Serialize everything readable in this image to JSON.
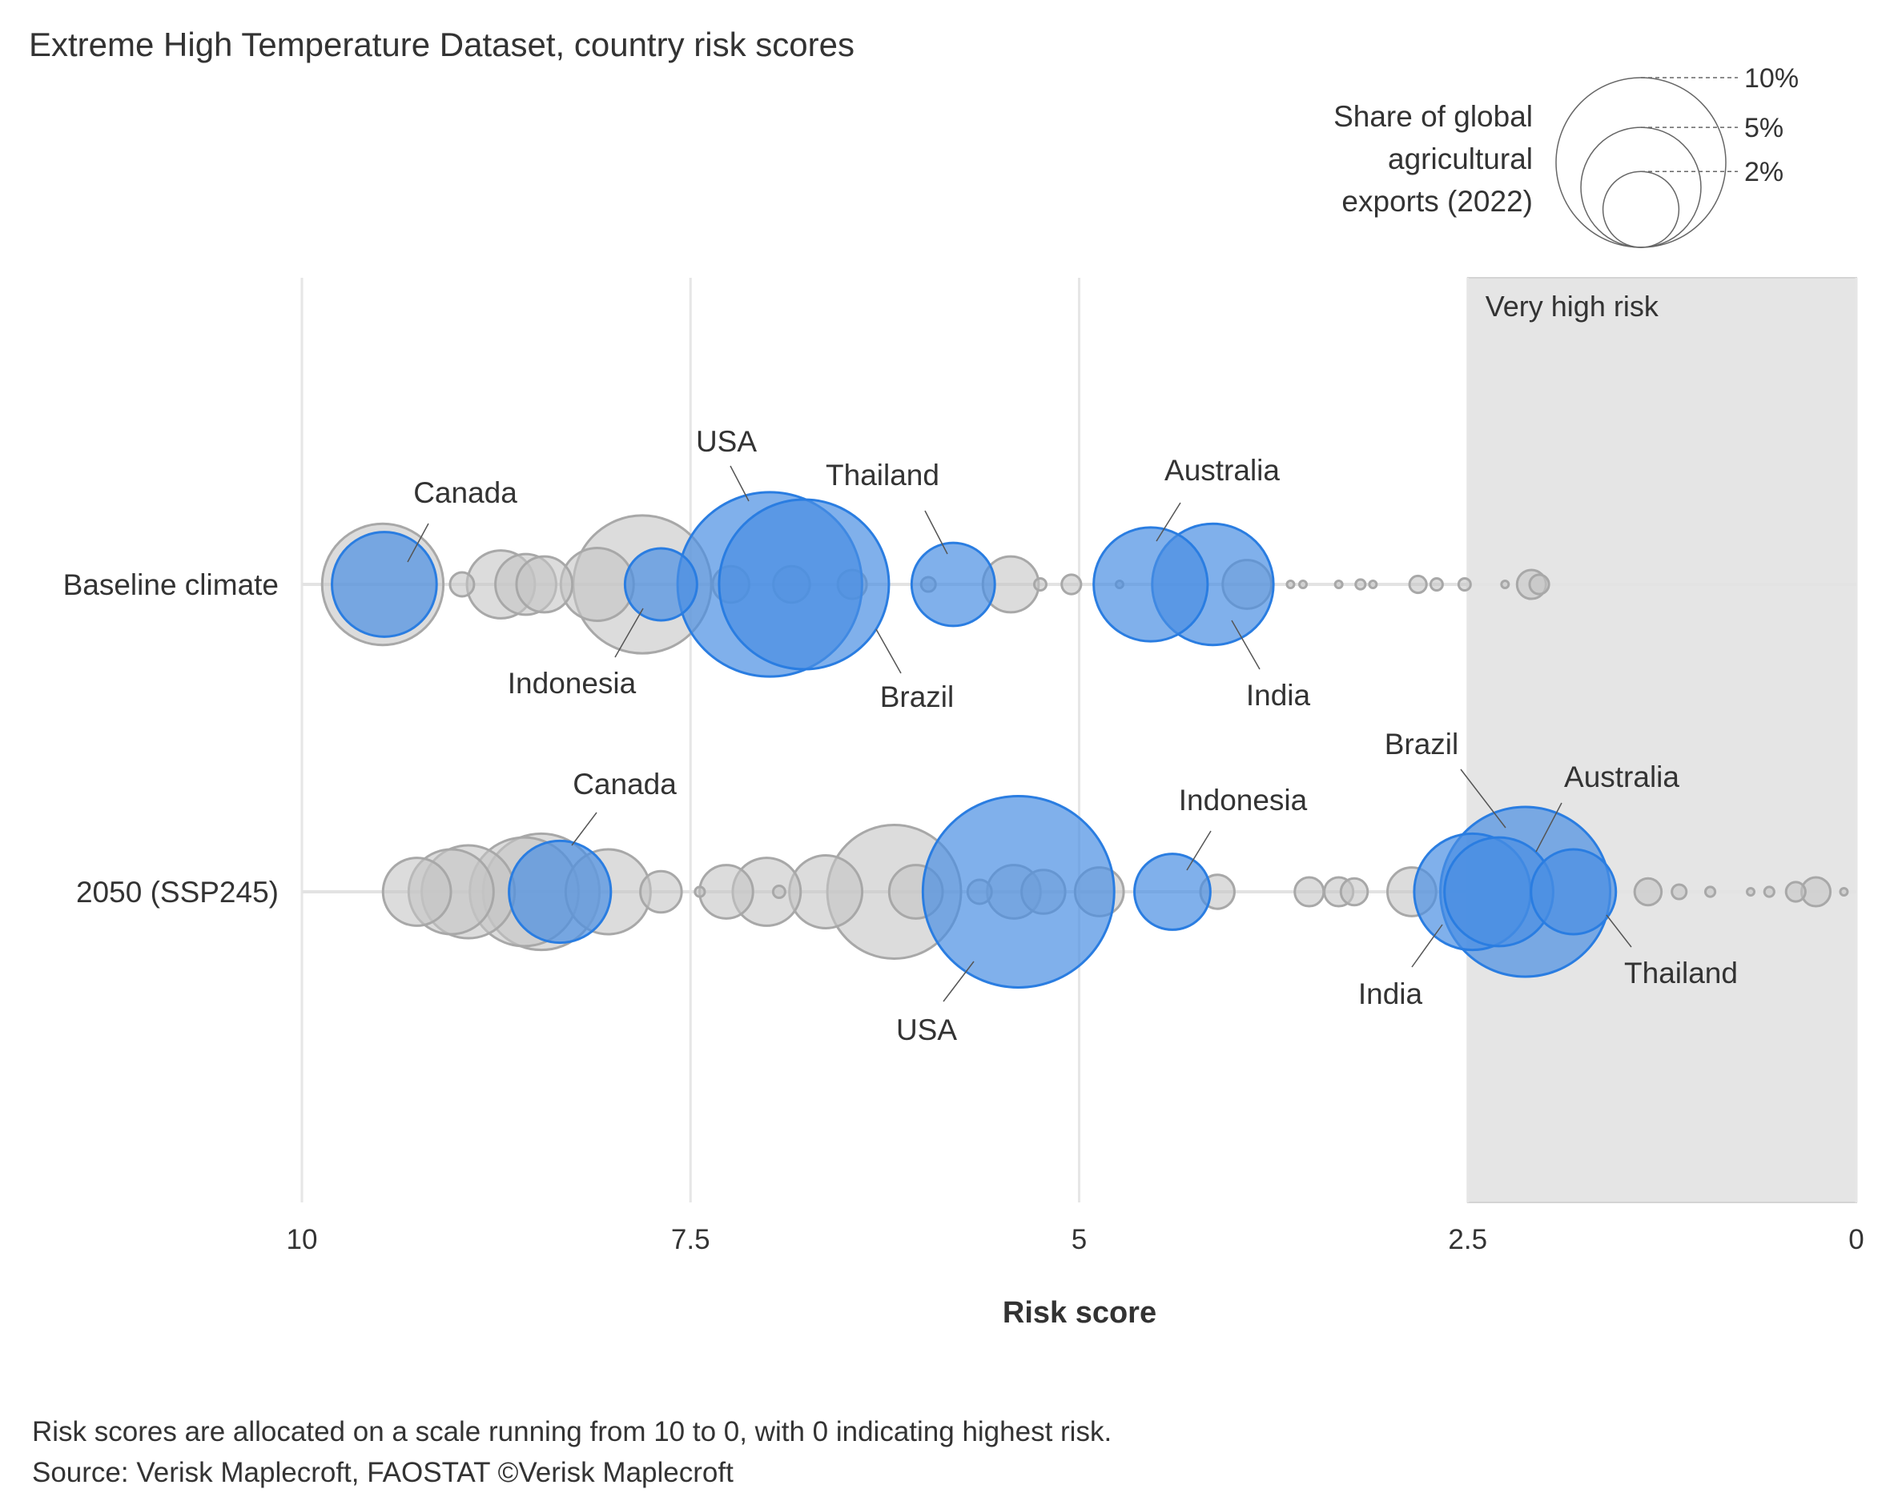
{
  "chart_data": {
    "type": "scatter",
    "title": "Extreme High Temperature Dataset, country risk scores",
    "xlabel": "Risk score",
    "xlim": [
      10,
      0
    ],
    "x_reversed": true,
    "x_ticks": [
      "10",
      "7.5",
      "5",
      "2.5",
      "0"
    ],
    "x_tick_values": [
      10,
      7.5,
      5,
      2.5,
      0
    ],
    "grid": true,
    "rows": [
      "Baseline climate",
      "2050 (SSP245)"
    ],
    "shaded_region": {
      "label": "Very high risk",
      "from": 2.5,
      "to": 0,
      "color": "#e5e5e5"
    },
    "size_legend": {
      "title_lines": [
        "Share of global",
        "agricultural",
        "exports (2022)"
      ],
      "entries": [
        {
          "label": "10%",
          "value": 10
        },
        {
          "label": "5%",
          "value": 5
        },
        {
          "label": "2%",
          "value": 2
        }
      ],
      "placement": "top-right"
    },
    "colors": {
      "highlight_fill": "#4a8fe3",
      "highlight_stroke": "#2a7de1",
      "other_fill": "#c4c4c4",
      "other_stroke": "#a8a8a8",
      "shade": "#e5e5e5"
    },
    "highlighted": [
      {
        "row": 0,
        "country": "Canada",
        "score": 9.47,
        "share": 3.8
      },
      {
        "row": 0,
        "country": "Indonesia",
        "score": 7.69,
        "share": 1.8
      },
      {
        "row": 0,
        "country": "USA",
        "score": 6.99,
        "share": 11.8
      },
      {
        "row": 0,
        "country": "Brazil",
        "score": 6.77,
        "share": 10.0
      },
      {
        "row": 0,
        "country": "Thailand",
        "score": 5.81,
        "share": 2.4
      },
      {
        "row": 0,
        "country": "Australia",
        "score": 4.54,
        "share": 4.5
      },
      {
        "row": 0,
        "country": "India",
        "score": 4.14,
        "share": 5.1
      },
      {
        "row": 1,
        "country": "Canada",
        "score": 8.34,
        "share": 3.6
      },
      {
        "row": 1,
        "country": "USA",
        "score": 5.39,
        "share": 12.7
      },
      {
        "row": 1,
        "country": "Indonesia",
        "score": 4.4,
        "share": 2.0
      },
      {
        "row": 1,
        "country": "India",
        "score": 2.47,
        "share": 4.7
      },
      {
        "row": 1,
        "country": "Brazil",
        "score": 2.13,
        "share": 10.0
      },
      {
        "row": 1,
        "country": "Australia",
        "score": 2.3,
        "share": 4.1
      },
      {
        "row": 1,
        "country": "Thailand",
        "score": 1.82,
        "share": 2.5
      }
    ],
    "others": [
      {
        "row": 0,
        "score": 9.48,
        "share": 5.1
      },
      {
        "row": 0,
        "score": 7.81,
        "share": 6.6
      },
      {
        "row": 0,
        "score": 8.72,
        "share": 1.6
      },
      {
        "row": 0,
        "score": 8.56,
        "share": 1.28
      },
      {
        "row": 0,
        "score": 8.44,
        "share": 1.08
      },
      {
        "row": 0,
        "score": 8.1,
        "share": 1.84
      },
      {
        "row": 0,
        "score": 8.97,
        "share": 0.2
      },
      {
        "row": 0,
        "score": 5.44,
        "share": 1.08
      },
      {
        "row": 0,
        "score": 5.05,
        "share": 0.13
      },
      {
        "row": 0,
        "score": 3.92,
        "share": 0.82
      },
      {
        "row": 0,
        "score": 2.82,
        "share": 0.1
      },
      {
        "row": 0,
        "score": 2.7,
        "share": 0.05
      },
      {
        "row": 0,
        "score": 2.52,
        "share": 0.05
      },
      {
        "row": 0,
        "score": 2.09,
        "share": 0.29
      },
      {
        "row": 0,
        "score": 2.04,
        "share": 0.13
      },
      {
        "row": 0,
        "score": 6.46,
        "share": 0.29
      },
      {
        "row": 0,
        "score": 6.85,
        "share": 0.46
      },
      {
        "row": 0,
        "score": 7.24,
        "share": 0.46
      },
      {
        "row": 0,
        "score": 3.64,
        "share": 0.018
      },
      {
        "row": 0,
        "score": 3.56,
        "share": 0.018
      },
      {
        "row": 0,
        "score": 3.33,
        "share": 0.018
      },
      {
        "row": 0,
        "score": 3.19,
        "share": 0.033
      },
      {
        "row": 0,
        "score": 3.11,
        "share": 0.018
      },
      {
        "row": 0,
        "score": 2.26,
        "share": 0.018
      },
      {
        "row": 0,
        "score": 4.74,
        "share": 0.018
      },
      {
        "row": 0,
        "score": 5.25,
        "share": 0.05
      },
      {
        "row": 0,
        "score": 5.97,
        "share": 0.073
      },
      {
        "row": 1,
        "score": 9.26,
        "share": 1.6
      },
      {
        "row": 1,
        "score": 9.04,
        "share": 2.5
      },
      {
        "row": 1,
        "score": 8.93,
        "share": 3.0
      },
      {
        "row": 1,
        "score": 8.57,
        "share": 4.1
      },
      {
        "row": 1,
        "score": 8.46,
        "share": 4.7
      },
      {
        "row": 1,
        "score": 8.03,
        "share": 2.5
      },
      {
        "row": 1,
        "score": 7.69,
        "share": 0.59
      },
      {
        "row": 1,
        "score": 7.27,
        "share": 0.99
      },
      {
        "row": 1,
        "score": 7.01,
        "share": 1.6
      },
      {
        "row": 1,
        "score": 6.63,
        "share": 1.84
      },
      {
        "row": 1,
        "score": 6.19,
        "share": 6.2
      },
      {
        "row": 1,
        "score": 6.05,
        "share": 0.99
      },
      {
        "row": 1,
        "score": 5.64,
        "share": 0.2
      },
      {
        "row": 1,
        "score": 5.42,
        "share": 0.99
      },
      {
        "row": 1,
        "score": 5.23,
        "share": 0.66
      },
      {
        "row": 1,
        "score": 4.87,
        "share": 0.82
      },
      {
        "row": 1,
        "score": 4.11,
        "share": 0.4
      },
      {
        "row": 1,
        "score": 3.52,
        "share": 0.29
      },
      {
        "row": 1,
        "score": 3.33,
        "share": 0.29
      },
      {
        "row": 1,
        "score": 3.23,
        "share": 0.25
      },
      {
        "row": 1,
        "score": 2.86,
        "share": 0.82
      },
      {
        "row": 1,
        "score": 1.34,
        "share": 0.25
      },
      {
        "row": 1,
        "score": 1.14,
        "share": 0.073
      },
      {
        "row": 1,
        "score": 0.94,
        "share": 0.033
      },
      {
        "row": 1,
        "score": 0.68,
        "share": 0.018
      },
      {
        "row": 1,
        "score": 0.56,
        "share": 0.033
      },
      {
        "row": 1,
        "score": 0.39,
        "share": 0.13
      },
      {
        "row": 1,
        "score": 0.26,
        "share": 0.29
      },
      {
        "row": 1,
        "score": 0.08,
        "share": 0.018
      },
      {
        "row": 1,
        "score": 7.44,
        "share": 0.033
      },
      {
        "row": 1,
        "score": 6.93,
        "share": 0.05
      }
    ]
  },
  "footnotes": [
    "Risk scores are allocated on a scale running from 10 to 0, with 0 indicating highest risk.",
    "Source: Verisk Maplecroft, FAOSTAT ©Verisk Maplecroft"
  ]
}
